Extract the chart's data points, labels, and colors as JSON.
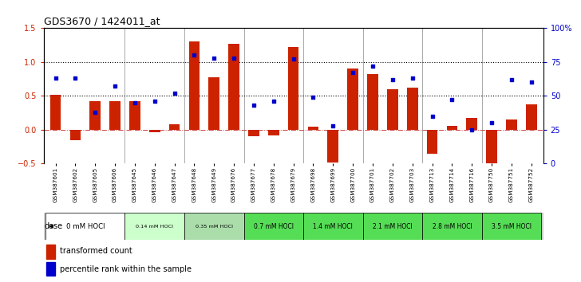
{
  "title": "GDS3670 / 1424011_at",
  "samples": [
    "GSM387601",
    "GSM387602",
    "GSM387605",
    "GSM387606",
    "GSM387645",
    "GSM387646",
    "GSM387647",
    "GSM387648",
    "GSM387649",
    "GSM387676",
    "GSM387677",
    "GSM387678",
    "GSM387679",
    "GSM387698",
    "GSM387699",
    "GSM387700",
    "GSM387701",
    "GSM387702",
    "GSM387703",
    "GSM387713",
    "GSM387714",
    "GSM387716",
    "GSM387750",
    "GSM387751",
    "GSM387752"
  ],
  "bar_values": [
    0.52,
    -0.15,
    0.42,
    0.42,
    0.42,
    -0.04,
    0.08,
    1.31,
    0.78,
    1.27,
    -0.1,
    -0.08,
    1.22,
    0.04,
    -0.48,
    0.9,
    0.82,
    0.6,
    0.62,
    -0.35,
    0.06,
    0.17,
    -0.5,
    0.15,
    0.38
  ],
  "dot_values": [
    0.63,
    0.63,
    0.38,
    0.57,
    0.45,
    0.46,
    0.52,
    0.8,
    0.78,
    0.78,
    0.43,
    0.46,
    0.77,
    0.49,
    0.28,
    0.67,
    0.72,
    0.62,
    0.63,
    0.35,
    0.47,
    0.25,
    0.3,
    0.62,
    0.6
  ],
  "dose_groups": [
    {
      "label": "0 mM HOCl",
      "start": 0,
      "end": 4,
      "color": "#ffffff",
      "fontsize": 8
    },
    {
      "label": "0.14 mM HOCl",
      "start": 4,
      "end": 7,
      "color": "#ccffcc",
      "fontsize": 6
    },
    {
      "label": "0.35 mM HOCl",
      "start": 7,
      "end": 10,
      "color": "#aaddaa",
      "fontsize": 6
    },
    {
      "label": "0.7 mM HOCl",
      "start": 10,
      "end": 13,
      "color": "#55dd55",
      "fontsize": 7
    },
    {
      "label": "1.4 mM HOCl",
      "start": 13,
      "end": 16,
      "color": "#55dd55",
      "fontsize": 7
    },
    {
      "label": "2.1 mM HOCl",
      "start": 16,
      "end": 19,
      "color": "#55dd55",
      "fontsize": 7
    },
    {
      "label": "2.8 mM HOCl",
      "start": 19,
      "end": 22,
      "color": "#55dd55",
      "fontsize": 7
    },
    {
      "label": "3.5 mM HOCl",
      "start": 22,
      "end": 25,
      "color": "#55dd55",
      "fontsize": 7
    }
  ],
  "bar_color": "#cc2200",
  "dot_color": "#0000cc",
  "ylim_left": [
    -0.5,
    1.5
  ],
  "ylim_right": [
    0,
    100
  ],
  "yticks_left": [
    -0.5,
    0.0,
    0.5,
    1.0,
    1.5
  ],
  "yticks_right": [
    0,
    25,
    50,
    75,
    100
  ],
  "ytick_labels_right": [
    "0",
    "25",
    "50",
    "75",
    "100%"
  ],
  "hlines": [
    0.5,
    1.0
  ],
  "background_color": "#ffffff"
}
